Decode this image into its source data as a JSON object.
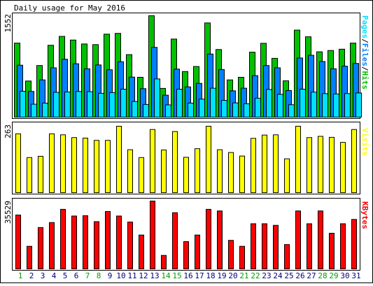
{
  "title": "Daily usage for May 2016",
  "colors": {
    "hits": "#00c000",
    "files": "#0080ff",
    "pages": "#00e0ff",
    "visits": "#ffff00",
    "kbytes": "#ff0000",
    "weekday_label": "#000080",
    "weekend_label": "#00a000"
  },
  "chart_data": [
    {
      "type": "bar",
      "categories": [
        "1",
        "2",
        "3",
        "4",
        "5",
        "6",
        "7",
        "8",
        "9",
        "10",
        "11",
        "12",
        "13",
        "14",
        "15",
        "16",
        "17",
        "18",
        "19",
        "20",
        "21",
        "22",
        "23",
        "24",
        "25",
        "26",
        "27",
        "28",
        "29",
        "30",
        "31"
      ],
      "weekend_days": [
        "1",
        "7",
        "8",
        "14",
        "15",
        "21",
        "22",
        "28",
        "29"
      ],
      "ymax_label": "1552",
      "ylim": [
        0,
        1552
      ],
      "legend_text": [
        "Pages",
        "/",
        "Files",
        "/",
        "Hits"
      ],
      "series": [
        {
          "name": "Hits",
          "values": [
            1133,
            553,
            790,
            1100,
            1236,
            1180,
            1120,
            1110,
            1270,
            1282,
            957,
            610,
            1552,
            440,
            1195,
            698,
            775,
            1442,
            1035,
            570,
            610,
            994,
            1130,
            900,
            556,
            1332,
            1230,
            1000,
            1020,
            1040,
            1133
          ]
        },
        {
          "name": "Files",
          "values": [
            795,
            394,
            570,
            755,
            886,
            817,
            740,
            799,
            725,
            848,
            613,
            436,
            1068,
            336,
            735,
            463,
            517,
            966,
            729,
            403,
            443,
            635,
            790,
            755,
            407,
            905,
            947,
            851,
            740,
            780,
            822
          ]
        },
        {
          "name": "Pages",
          "values": [
            396,
            198,
            215,
            380,
            385,
            393,
            390,
            365,
            376,
            428,
            240,
            194,
            585,
            188,
            427,
            215,
            276,
            443,
            257,
            218,
            205,
            290,
            424,
            350,
            190,
            428,
            383,
            360,
            355,
            361,
            370
          ]
        }
      ]
    },
    {
      "type": "bar",
      "categories": [
        "1",
        "2",
        "3",
        "4",
        "5",
        "6",
        "7",
        "8",
        "9",
        "10",
        "11",
        "12",
        "13",
        "14",
        "15",
        "16",
        "17",
        "18",
        "19",
        "20",
        "21",
        "22",
        "23",
        "24",
        "25",
        "26",
        "27",
        "28",
        "29",
        "30",
        "31"
      ],
      "ymax_label": "263",
      "ylim": [
        0,
        263
      ],
      "legend_text": [
        "Visits"
      ],
      "series": [
        {
          "name": "Visits",
          "values": [
            233,
            139,
            144,
            233,
            229,
            218,
            216,
            207,
            207,
            263,
            170,
            139,
            250,
            169,
            242,
            140,
            174,
            263,
            170,
            159,
            145,
            215,
            228,
            229,
            134,
            263,
            218,
            223,
            219,
            199,
            250
          ]
        }
      ]
    },
    {
      "type": "bar",
      "categories": [
        "1",
        "2",
        "3",
        "4",
        "5",
        "6",
        "7",
        "8",
        "9",
        "10",
        "11",
        "12",
        "13",
        "14",
        "15",
        "16",
        "17",
        "18",
        "19",
        "20",
        "21",
        "22",
        "23",
        "24",
        "25",
        "26",
        "27",
        "28",
        "29",
        "30",
        "31"
      ],
      "ymax_label": "35529",
      "ylim": [
        0,
        35529
      ],
      "legend_text": [
        "KBytes"
      ],
      "series": [
        {
          "name": "KBytes",
          "values": [
            28212,
            11822,
            21657,
            24274,
            31187,
            27686,
            27851,
            24735,
            30045,
            27686,
            24550,
            17728,
            35529,
            7060,
            29429,
            14284,
            17728,
            31187,
            30349,
            14937,
            11822,
            23643,
            23643,
            22808,
            12745,
            30349,
            23643,
            30349,
            18664,
            23643,
            25905
          ]
        }
      ]
    }
  ]
}
